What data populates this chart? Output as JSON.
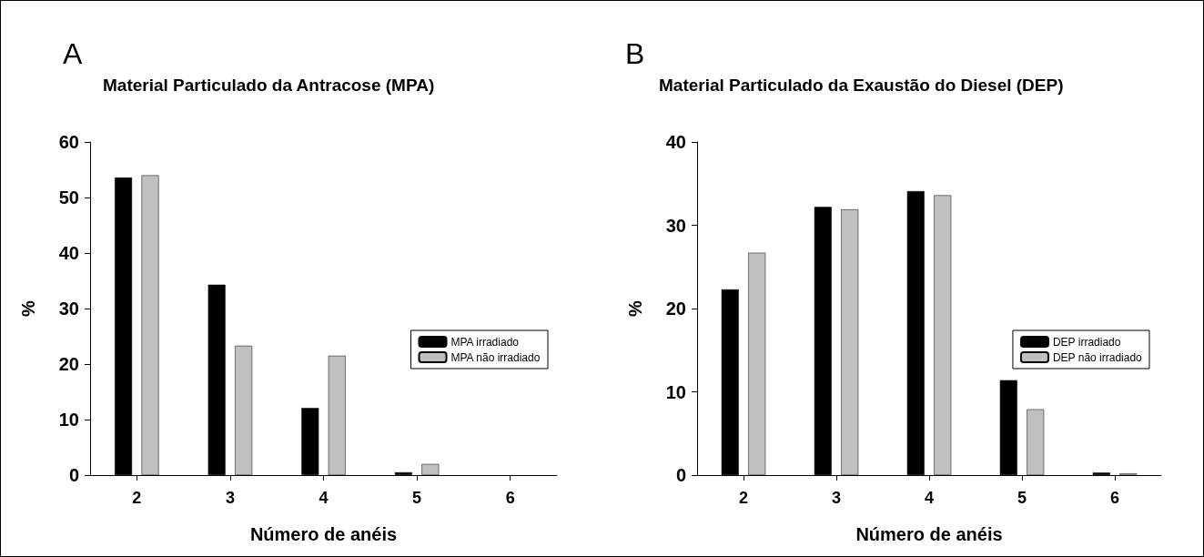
{
  "chart_data": [
    {
      "type": "bar",
      "title": "Material Particulado da Antracose (MPA)",
      "annotations": [
        "A"
      ],
      "xlabel": "Número de anéis",
      "ylabel": "%",
      "categories": [
        "2",
        "3",
        "4",
        "5",
        "6"
      ],
      "series": [
        {
          "name": "MPA irradiado",
          "color": "#000000",
          "values": [
            53.6,
            34.3,
            12.1,
            0.5,
            null
          ]
        },
        {
          "name": "MPA não irradiado",
          "color": "#c0c0c0",
          "values": [
            54,
            23.3,
            21.5,
            2,
            null
          ]
        }
      ],
      "ylim": [
        0,
        60
      ],
      "yticks": [
        0,
        10,
        20,
        30,
        40,
        50,
        60
      ],
      "grid": false,
      "legend": "right"
    },
    {
      "type": "bar",
      "title": "Material Particulado da Exaustão do Diesel (DEP)",
      "annotations": [
        "B"
      ],
      "xlabel": "Número de anéis",
      "ylabel": "%",
      "categories": [
        "2",
        "3",
        "4",
        "5",
        "6"
      ],
      "series": [
        {
          "name": "DEP irradiado",
          "color": "#000000",
          "values": [
            22.3,
            32.2,
            34.1,
            11.4,
            0.3
          ]
        },
        {
          "name": "DEP não irradiado",
          "color": "#c0c0c0",
          "values": [
            26.7,
            31.9,
            33.6,
            7.9,
            0.2
          ]
        }
      ],
      "ylim": [
        0,
        40
      ],
      "yticks": [
        0,
        10,
        20,
        30,
        40
      ],
      "grid": false,
      "legend": "right"
    }
  ]
}
